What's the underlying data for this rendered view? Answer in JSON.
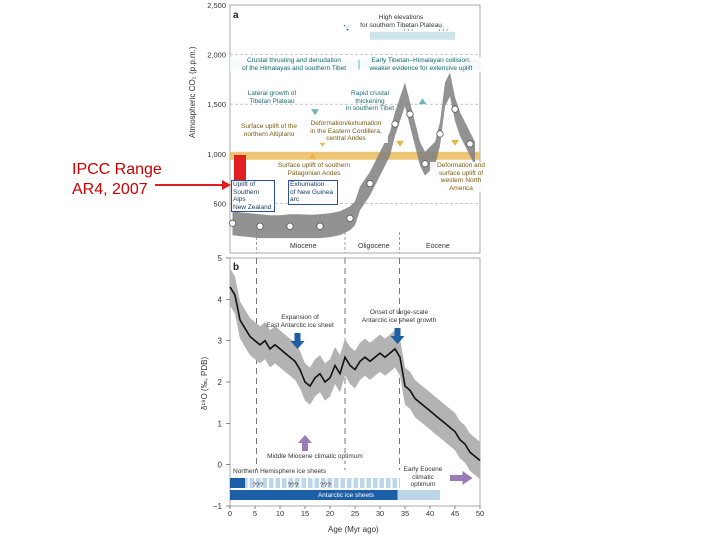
{
  "callout": {
    "text": "IPCC Range\nAR4, 2007",
    "color": "#cc0000"
  },
  "colors": {
    "grey_envelope": "#b3b3b3",
    "teal": "#6fb5bd",
    "gold": "#e8b64a",
    "dark_blue": "#1d5fa6",
    "purple": "#9b7bb6",
    "red": "#e0201f"
  },
  "chart_data": [
    {
      "type": "line",
      "panel_label": "a",
      "ylabel": "Atmospheric CO₂ (p.p.m.)",
      "xlim": [
        0,
        50
      ],
      "ylim": [
        0,
        2500
      ],
      "yticks": [
        "500",
        "1,000",
        "1,500",
        "2,000",
        "2,500"
      ],
      "ytick_values": [
        500,
        1000,
        1500,
        2000,
        2500
      ],
      "grid": "horizontal dashed",
      "epochs": [
        "Miocene",
        "Oligocene",
        "Eocene"
      ],
      "series": [
        {
          "values_x": [
            0.5,
            2,
            4,
            6,
            8,
            10,
            12,
            14,
            16,
            18,
            20,
            22,
            24,
            25,
            26,
            28,
            30,
            32,
            33,
            34,
            35,
            36,
            37,
            38,
            39,
            40,
            41,
            42,
            43,
            44,
            45,
            46,
            47,
            48,
            49
          ],
          "values_y": [
            300,
            290,
            280,
            270,
            260,
            260,
            270,
            270,
            265,
            270,
            280,
            300,
            350,
            400,
            550,
            700,
            900,
            1100,
            1300,
            1450,
            1600,
            1400,
            1200,
            1000,
            900,
            950,
            1000,
            1200,
            1600,
            1700,
            1450,
            1300,
            1200,
            1100,
            1000
          ]
        }
      ],
      "annotations": [
        "High elevations\nfor southern Tibetan Plateau",
        "Crustal thrusting and denudation\nof the Himalayas and southern Tibet",
        "Early Tibetan–Himalayan collision:\nweaker evidence for extensive uplift",
        "Lateral growth of\nTibetan Plateau",
        "Rapid crustal\nthickening\nin southern Tibet",
        "Surface uplift of the\nnorthern Altiplano",
        "Deformation/exhumation\nin the Eastern Cordillera,\ncentral Andes",
        "Surface uplift of southern\nPatagonian Andes",
        "Deformation and\nsurface uplift of\nwestern North America",
        "Exhumation\nof New Guinea\narc",
        "Uplift of\nSouthern Alps\nNew Zealand"
      ],
      "question_marks": [
        "???",
        "???"
      ]
    },
    {
      "type": "line",
      "panel_label": "b",
      "ylabel": "δ¹⁸O (‰, PDB)",
      "xlabel": "Age (Myr ago)",
      "xlim": [
        0,
        50
      ],
      "ylim": [
        -1,
        5
      ],
      "xticks": [
        "0",
        "5",
        "10",
        "15",
        "20",
        "25",
        "30",
        "35",
        "40",
        "45",
        "50"
      ],
      "yticks": [
        "−1",
        "0",
        "1",
        "2",
        "3",
        "4",
        "5"
      ],
      "series": [
        {
          "x": [
            0,
            1,
            2,
            3,
            4,
            5,
            6,
            7,
            8,
            9,
            10,
            11,
            12,
            13,
            14,
            15,
            16,
            17,
            18,
            19,
            20,
            21,
            22,
            23,
            24,
            25,
            26,
            27,
            28,
            29,
            30,
            31,
            32,
            33,
            34,
            35,
            36,
            37,
            38,
            39,
            40,
            41,
            42,
            43,
            44,
            45,
            46,
            47,
            48,
            49,
            50
          ],
          "y": [
            4.3,
            4.1,
            3.5,
            3.3,
            3.1,
            3.0,
            2.9,
            3.0,
            2.8,
            2.9,
            2.8,
            2.7,
            2.6,
            2.5,
            2.3,
            2.0,
            1.9,
            2.1,
            2.2,
            2.0,
            2.1,
            2.4,
            2.2,
            2.6,
            2.4,
            2.3,
            2.5,
            2.6,
            2.5,
            2.6,
            2.7,
            2.6,
            2.7,
            2.8,
            2.6,
            1.9,
            1.8,
            1.6,
            1.5,
            1.4,
            1.3,
            1.2,
            1.1,
            1.0,
            0.9,
            0.8,
            0.6,
            0.5,
            0.3,
            0.2,
            0.1
          ]
        }
      ],
      "annotations": [
        "Expansion of\nEast Antarctic ice sheet",
        "Onset of large-scale\nAntarctic ice sheet growth",
        "Middle Miocene climatic optimum",
        "Early Eocene\nclimatic\noptimum"
      ],
      "bars": [
        "Northern Hemisphere ice sheets",
        "Antarctic ice sheets"
      ],
      "question_marks": [
        "???",
        "???",
        "???"
      ]
    }
  ]
}
